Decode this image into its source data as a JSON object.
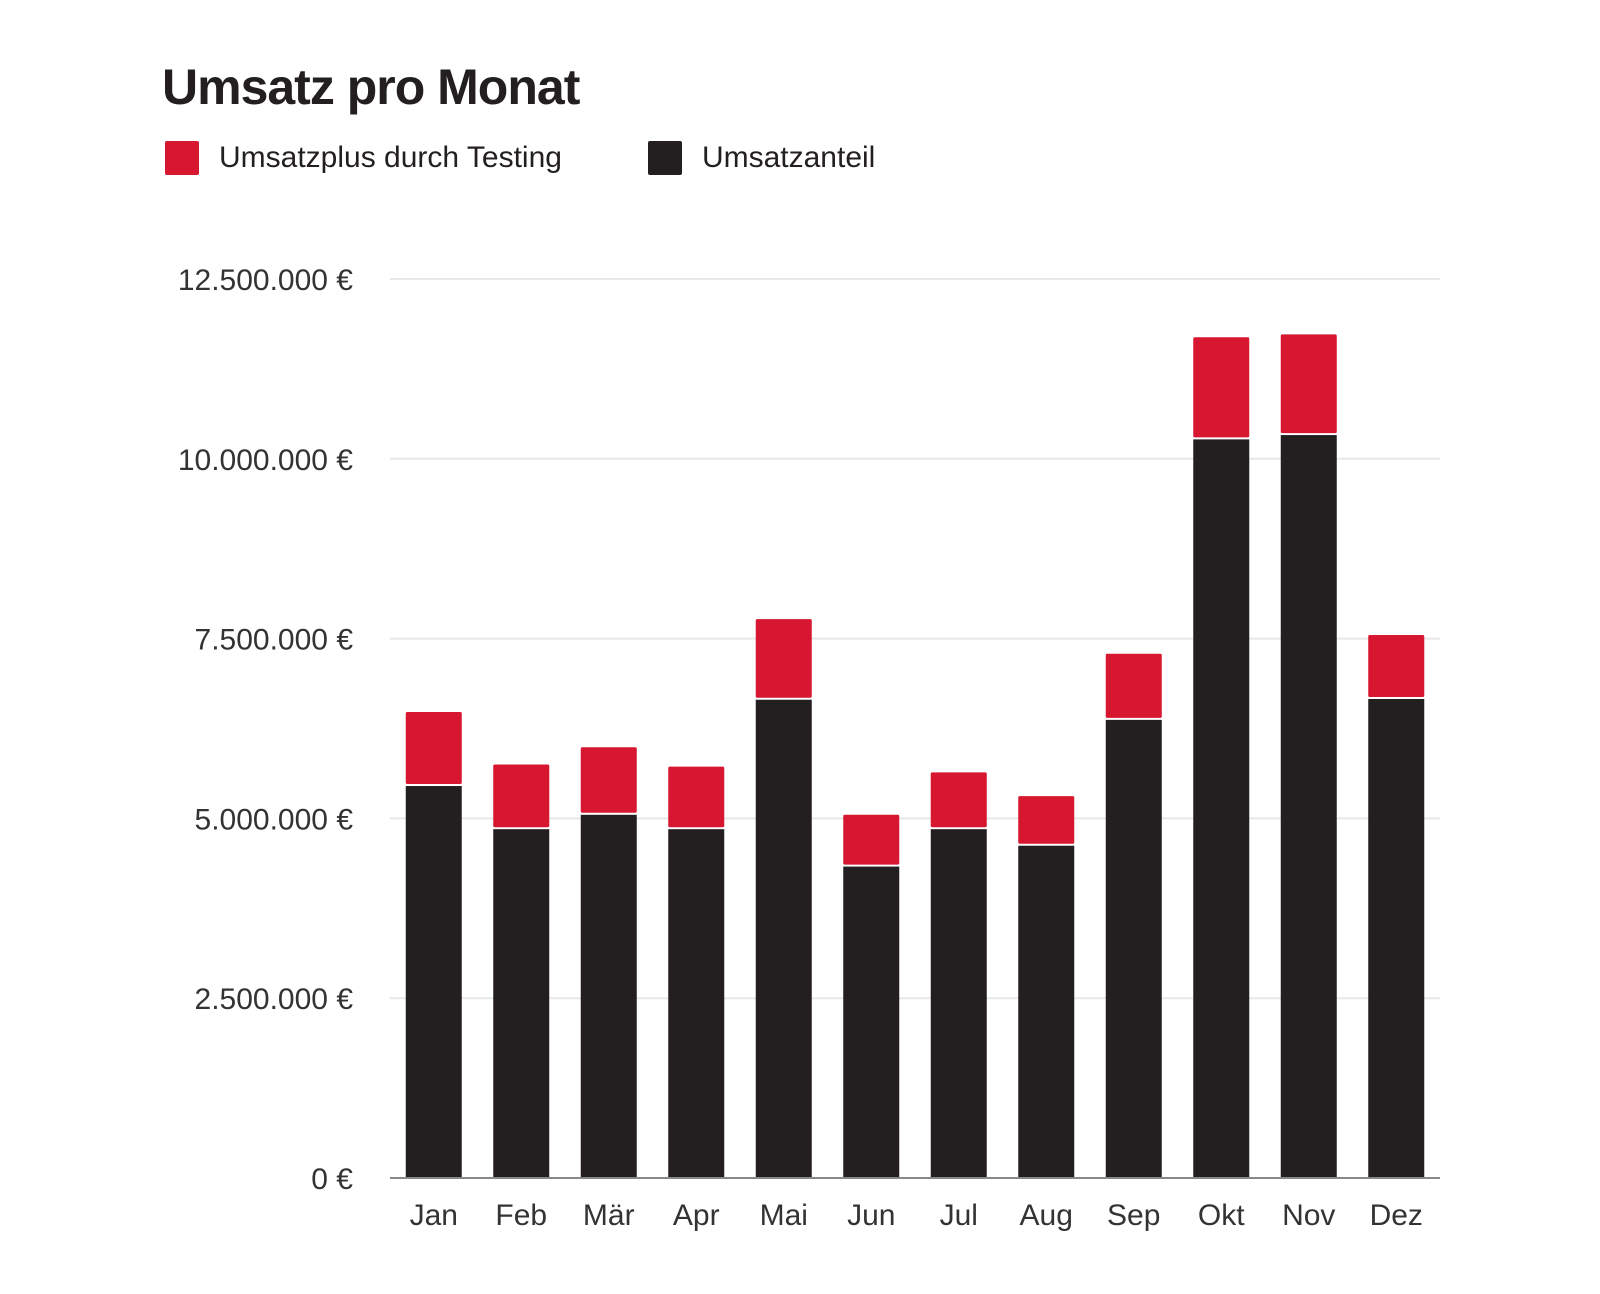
{
  "title": "Umsatz pro Monat",
  "legend": {
    "items": [
      {
        "label": "Umsatzplus durch Testing",
        "color": "#d7162f"
      },
      {
        "label": "Umsatzanteil",
        "color": "#231f20"
      }
    ]
  },
  "colors": {
    "plus": "#d7162f",
    "base": "#231f20",
    "grid": "#e8e8e8",
    "axis": "#888888",
    "text": "#333333"
  },
  "chart_data": {
    "type": "bar",
    "stacked": true,
    "title": "Umsatz pro Monat",
    "xlabel": "",
    "ylabel": "",
    "categories": [
      "Jan",
      "Feb",
      "Mär",
      "Apr",
      "Mai",
      "Jun",
      "Jul",
      "Aug",
      "Sep",
      "Okt",
      "Nov",
      "Dez"
    ],
    "series": [
      {
        "name": "Umsatzanteil",
        "values": [
          5450000,
          4850000,
          5050000,
          4850000,
          6650000,
          4330000,
          4850000,
          4620000,
          6370000,
          10270000,
          10330000,
          6660000
        ]
      },
      {
        "name": "Umsatzplus durch Testing",
        "values": [
          1030000,
          900000,
          940000,
          870000,
          1120000,
          720000,
          790000,
          690000,
          920000,
          1420000,
          1400000,
          890000
        ]
      }
    ],
    "ylim": [
      0,
      12500000
    ],
    "yticks": [
      0,
      2500000,
      5000000,
      7500000,
      10000000,
      12500000
    ],
    "ytick_labels": [
      "0 €",
      "2.500.000 €",
      "5.000.000 €",
      "7.500.000 €",
      "10.000.000 €",
      "12.500.000 €"
    ],
    "grid": true,
    "legend_position": "top-left"
  }
}
